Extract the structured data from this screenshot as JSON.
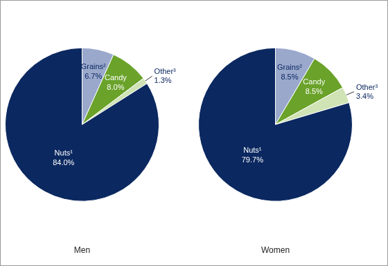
{
  "chart_data": [
    {
      "type": "pie",
      "title": "Men",
      "categories": [
        "Grains²",
        "Candy",
        "Other³",
        "Nuts¹"
      ],
      "values": [
        6.7,
        8.0,
        1.3,
        84.0
      ],
      "value_labels": [
        "6.7%",
        "8.0%",
        "1.3%",
        "84.0%"
      ],
      "colors": [
        "#9aa8cc",
        "#6aa22a",
        "#cfe3b4",
        "#0b2860"
      ],
      "data_labels": true
    },
    {
      "type": "pie",
      "title": "Women",
      "categories": [
        "Grains²",
        "Candy",
        "Other³",
        "Nuts¹"
      ],
      "values": [
        8.5,
        8.5,
        3.4,
        79.7
      ],
      "value_labels": [
        "8.5%",
        "8.5%",
        "3.4%",
        "79.7%"
      ],
      "colors": [
        "#9aa8cc",
        "#6aa22a",
        "#cfe3b4",
        "#0b2860"
      ],
      "data_labels": true
    }
  ]
}
